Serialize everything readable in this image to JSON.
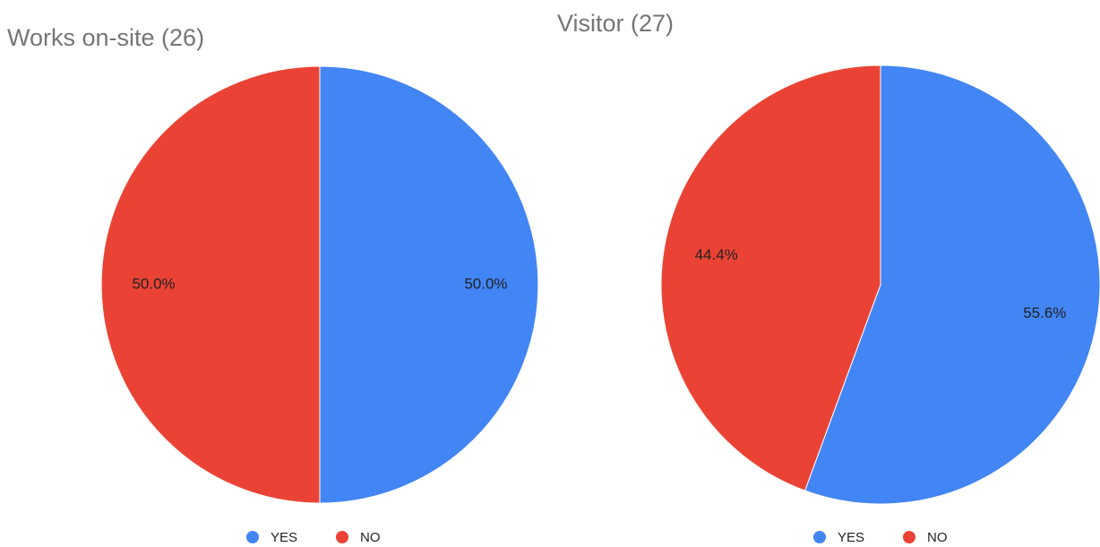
{
  "chart_data": [
    {
      "type": "pie",
      "title": "Works on-site (26)",
      "categories": [
        "YES",
        "NO"
      ],
      "values": [
        50,
        50
      ],
      "value_labels": [
        "50.0%",
        "50.0%"
      ],
      "colors": [
        "#4285f4",
        "#ea4335"
      ],
      "legend": "bottom"
    },
    {
      "type": "pie",
      "title": "Visitor (27)",
      "categories": [
        "YES",
        "NO"
      ],
      "values": [
        55.6,
        44.4
      ],
      "value_labels": [
        "55.6%",
        "44.4%"
      ],
      "colors": [
        "#4285f4",
        "#ea4335"
      ],
      "legend": "bottom"
    }
  ]
}
